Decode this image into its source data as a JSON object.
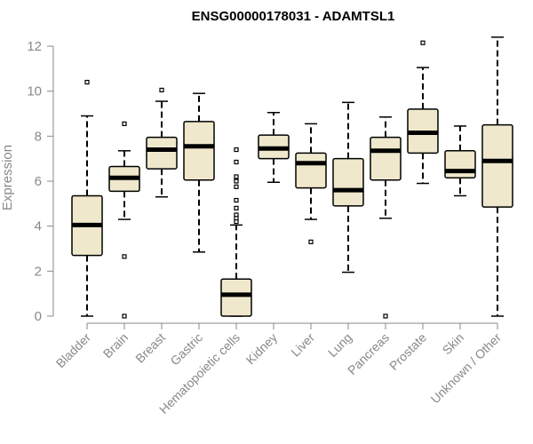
{
  "chart_data": {
    "type": "box",
    "title": "ENSG00000178031 - ADAMTSL1",
    "xlabel": "",
    "ylabel": "Expression",
    "ylim": [
      0,
      12
    ],
    "yticks": [
      0,
      2,
      4,
      6,
      8,
      10,
      12
    ],
    "colors": {
      "box_fill": "#efe8cc",
      "stroke": "#000000",
      "axis": "#888888"
    },
    "categories": [
      "Bladder",
      "Brain",
      "Breast",
      "Gastric",
      "Hematopoietic cells",
      "Kidney",
      "Liver",
      "Lung",
      "Pancreas",
      "Prostate",
      "Skin",
      "Unknown / Other"
    ],
    "boxes": [
      {
        "name": "Bladder",
        "whisker_low": 0.0,
        "q1": 2.7,
        "median": 4.05,
        "q3": 5.35,
        "whisker_high": 8.9,
        "outliers": [
          10.4
        ]
      },
      {
        "name": "Brain",
        "whisker_low": 4.3,
        "q1": 5.55,
        "median": 6.15,
        "q3": 6.65,
        "whisker_high": 7.35,
        "outliers": [
          8.55,
          2.65,
          0.0
        ]
      },
      {
        "name": "Breast",
        "whisker_low": 5.3,
        "q1": 6.55,
        "median": 7.4,
        "q3": 7.95,
        "whisker_high": 9.55,
        "outliers": [
          10.05
        ]
      },
      {
        "name": "Gastric",
        "whisker_low": 2.85,
        "q1": 6.05,
        "median": 7.55,
        "q3": 8.65,
        "whisker_high": 9.9,
        "outliers": []
      },
      {
        "name": "Hematopoietic cells",
        "whisker_low": 0.0,
        "q1": 0.0,
        "median": 0.95,
        "q3": 1.65,
        "whisker_high": 4.05,
        "outliers": [
          7.4,
          6.85,
          6.2,
          6.0,
          5.75,
          5.15,
          4.8,
          4.5,
          4.35,
          4.2
        ]
      },
      {
        "name": "Kidney",
        "whisker_low": 5.95,
        "q1": 7.0,
        "median": 7.45,
        "q3": 8.05,
        "whisker_high": 9.05,
        "outliers": []
      },
      {
        "name": "Liver",
        "whisker_low": 4.3,
        "q1": 5.7,
        "median": 6.8,
        "q3": 7.25,
        "whisker_high": 8.55,
        "outliers": [
          3.3
        ]
      },
      {
        "name": "Lung",
        "whisker_low": 1.95,
        "q1": 4.9,
        "median": 5.6,
        "q3": 7.0,
        "whisker_high": 9.5,
        "outliers": []
      },
      {
        "name": "Pancreas",
        "whisker_low": 4.35,
        "q1": 6.05,
        "median": 7.35,
        "q3": 7.95,
        "whisker_high": 8.85,
        "outliers": [
          0.0
        ]
      },
      {
        "name": "Prostate",
        "whisker_low": 5.9,
        "q1": 7.25,
        "median": 8.15,
        "q3": 9.2,
        "whisker_high": 11.05,
        "outliers": [
          12.15
        ]
      },
      {
        "name": "Skin",
        "whisker_low": 5.35,
        "q1": 6.15,
        "median": 6.45,
        "q3": 7.35,
        "whisker_high": 8.45,
        "outliers": []
      },
      {
        "name": "Unknown / Other",
        "whisker_low": 0.0,
        "q1": 4.85,
        "median": 6.9,
        "q3": 8.5,
        "whisker_high": 12.4,
        "outliers": []
      }
    ]
  }
}
